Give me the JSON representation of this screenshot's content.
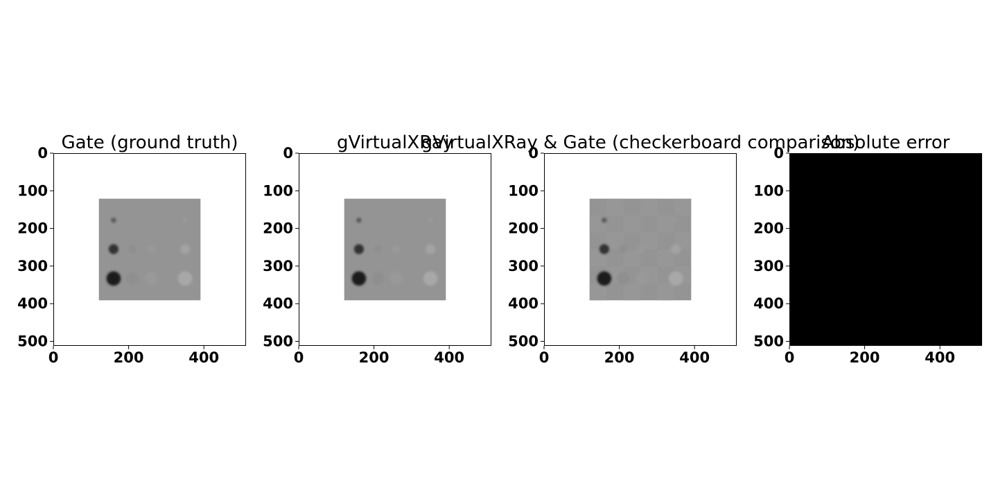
{
  "figure": {
    "background": "#ffffff",
    "image_colormap": "gray"
  },
  "chart_data": [
    {
      "type": "heatmap",
      "title": "Gate (ground truth)",
      "xlim": [
        0,
        512
      ],
      "ylim": [
        512,
        0
      ],
      "xticks": [
        0,
        200,
        400
      ],
      "yticks": [
        0,
        100,
        200,
        300,
        400,
        500
      ],
      "image": "phantom",
      "background_value": 1.0,
      "square": {
        "x": [
          121,
          391
        ],
        "y": [
          121,
          391
        ],
        "value": 0.58
      },
      "inserts": [
        {
          "cx": 160,
          "cy": 178,
          "r": 7,
          "value": 0.36
        },
        {
          "cx": 160,
          "cy": 255,
          "r": 13,
          "value": 0.2
        },
        {
          "cx": 160,
          "cy": 333,
          "r": 19,
          "value": 0.1
        },
        {
          "cx": 210,
          "cy": 255,
          "r": 11,
          "value": 0.56
        },
        {
          "cx": 260,
          "cy": 255,
          "r": 11,
          "value": 0.6
        },
        {
          "cx": 350,
          "cy": 255,
          "r": 13,
          "value": 0.64
        },
        {
          "cx": 210,
          "cy": 333,
          "r": 17,
          "value": 0.56
        },
        {
          "cx": 260,
          "cy": 333,
          "r": 17,
          "value": 0.6
        },
        {
          "cx": 350,
          "cy": 333,
          "r": 19,
          "value": 0.66
        },
        {
          "cx": 350,
          "cy": 178,
          "r": 7,
          "value": 0.6
        }
      ]
    },
    {
      "type": "heatmap",
      "title": "gVirtualXRay",
      "xlim": [
        0,
        512
      ],
      "ylim": [
        512,
        0
      ],
      "xticks": [
        0,
        200,
        400
      ],
      "yticks": [
        0,
        100,
        200,
        300,
        400,
        500
      ],
      "image": "phantom",
      "background_value": 1.0,
      "square": {
        "x": [
          121,
          391
        ],
        "y": [
          121,
          391
        ],
        "value": 0.58
      },
      "inserts": [
        {
          "cx": 160,
          "cy": 178,
          "r": 7,
          "value": 0.36
        },
        {
          "cx": 160,
          "cy": 255,
          "r": 13,
          "value": 0.2
        },
        {
          "cx": 160,
          "cy": 333,
          "r": 19,
          "value": 0.1
        },
        {
          "cx": 210,
          "cy": 255,
          "r": 11,
          "value": 0.56
        },
        {
          "cx": 260,
          "cy": 255,
          "r": 11,
          "value": 0.6
        },
        {
          "cx": 350,
          "cy": 255,
          "r": 13,
          "value": 0.64
        },
        {
          "cx": 210,
          "cy": 333,
          "r": 17,
          "value": 0.56
        },
        {
          "cx": 260,
          "cy": 333,
          "r": 17,
          "value": 0.6
        },
        {
          "cx": 350,
          "cy": 333,
          "r": 19,
          "value": 0.66
        },
        {
          "cx": 350,
          "cy": 178,
          "r": 7,
          "value": 0.6
        }
      ]
    },
    {
      "type": "heatmap",
      "title": "gVirtualXRay & Gate (checkerboard comparison)",
      "xlim": [
        0,
        512
      ],
      "ylim": [
        512,
        0
      ],
      "xticks": [
        0,
        200,
        400
      ],
      "yticks": [
        0,
        100,
        200,
        300,
        400,
        500
      ],
      "image": "phantom",
      "checkerboard": true,
      "background_value": 1.0,
      "square": {
        "x": [
          121,
          391
        ],
        "y": [
          121,
          391
        ],
        "value": 0.58
      },
      "inserts": [
        {
          "cx": 160,
          "cy": 178,
          "r": 7,
          "value": 0.36
        },
        {
          "cx": 160,
          "cy": 255,
          "r": 13,
          "value": 0.2
        },
        {
          "cx": 160,
          "cy": 333,
          "r": 19,
          "value": 0.1
        },
        {
          "cx": 210,
          "cy": 255,
          "r": 11,
          "value": 0.56
        },
        {
          "cx": 260,
          "cy": 255,
          "r": 11,
          "value": 0.6
        },
        {
          "cx": 350,
          "cy": 255,
          "r": 13,
          "value": 0.64
        },
        {
          "cx": 210,
          "cy": 333,
          "r": 17,
          "value": 0.56
        },
        {
          "cx": 260,
          "cy": 333,
          "r": 17,
          "value": 0.6
        },
        {
          "cx": 350,
          "cy": 333,
          "r": 19,
          "value": 0.66
        },
        {
          "cx": 350,
          "cy": 178,
          "r": 7,
          "value": 0.6
        }
      ]
    },
    {
      "type": "heatmap",
      "title": "Absolute error",
      "xlim": [
        0,
        512
      ],
      "ylim": [
        512,
        0
      ],
      "xticks": [
        0,
        200,
        400
      ],
      "yticks": [
        0,
        100,
        200,
        300,
        400,
        500
      ],
      "image": "uniform",
      "value": 0.0
    }
  ]
}
